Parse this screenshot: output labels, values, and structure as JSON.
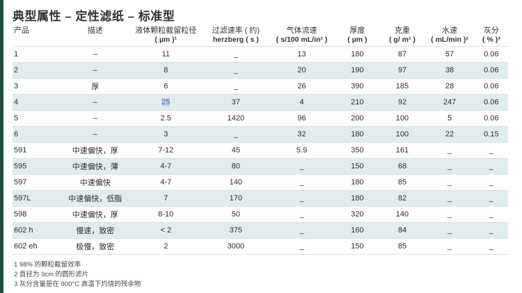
{
  "title": "典型属性 – 定性滤纸 – 标准型",
  "columns": [
    {
      "key": "product",
      "label": "产品",
      "unit": ""
    },
    {
      "key": "description",
      "label": "描述",
      "unit": ""
    },
    {
      "key": "particle_retention",
      "label": "液体颗粒截留粒径",
      "unit": "( µm )¹"
    },
    {
      "key": "filtration_speed",
      "label": "过滤速率 ( 约)",
      "unit": "herzberg ( s )"
    },
    {
      "key": "air_flow",
      "label": "气体流速",
      "unit": "( s/100 mL/in² )"
    },
    {
      "key": "thickness",
      "label": "厚度",
      "unit": "( µm )"
    },
    {
      "key": "weight",
      "label": "克重",
      "unit": "( g/ m² )"
    },
    {
      "key": "water_speed",
      "label": "水速",
      "unit": "( mL/min )²"
    },
    {
      "key": "ash",
      "label": "灰分",
      "unit": "( % )³"
    }
  ],
  "rows": [
    {
      "product": "1",
      "description": "–",
      "particle_retention": "11",
      "filtration_speed": "_",
      "air_flow": "13",
      "thickness": "180",
      "weight": "87",
      "water_speed": "57",
      "ash": "0.06"
    },
    {
      "product": "2",
      "description": "–",
      "particle_retention": "8",
      "filtration_speed": "_",
      "air_flow": "20",
      "thickness": "190",
      "weight": "97",
      "water_speed": "38",
      "ash": "0.06"
    },
    {
      "product": "3",
      "description": "厚",
      "particle_retention": "6",
      "filtration_speed": "_",
      "air_flow": "26",
      "thickness": "390",
      "weight": "185",
      "water_speed": "28",
      "ash": "0.06"
    },
    {
      "product": "4",
      "description": "–",
      "particle_retention": "25",
      "filtration_speed": "37",
      "air_flow": "4",
      "thickness": "210",
      "weight": "92",
      "water_speed": "247",
      "ash": "0.06"
    },
    {
      "product": "5",
      "description": "–",
      "particle_retention": "2.5",
      "filtration_speed": "1420",
      "air_flow": "96",
      "thickness": "200",
      "weight": "100",
      "water_speed": "5",
      "ash": "0.06"
    },
    {
      "product": "6",
      "description": "–",
      "particle_retention": "3",
      "filtration_speed": "_",
      "air_flow": "32",
      "thickness": "180",
      "weight": "100",
      "water_speed": "22",
      "ash": "0.15"
    },
    {
      "product": "591",
      "description": "中速偏快，厚",
      "particle_retention": "7-12",
      "filtration_speed": "45",
      "air_flow": "5.9",
      "thickness": "350",
      "weight": "161",
      "water_speed": "_",
      "ash": "_"
    },
    {
      "product": "595",
      "description": "中速偏快，薄",
      "particle_retention": "4-7",
      "filtration_speed": "80",
      "air_flow": "_",
      "thickness": "150",
      "weight": "68",
      "water_speed": "_",
      "ash": "_"
    },
    {
      "product": "597",
      "description": "中速偏快",
      "particle_retention": "4-7",
      "filtration_speed": "140",
      "air_flow": "_",
      "thickness": "180",
      "weight": "85",
      "water_speed": "_",
      "ash": "_"
    },
    {
      "product": "597L",
      "description": "中速偏快，低脂",
      "particle_retention": "7",
      "filtration_speed": "170",
      "air_flow": "_",
      "thickness": "180",
      "weight": "82",
      "water_speed": "_",
      "ash": "_"
    },
    {
      "product": "598",
      "description": "中速偏快，厚",
      "particle_retention": "8-10",
      "filtration_speed": "50",
      "air_flow": "_",
      "thickness": "320",
      "weight": "140",
      "water_speed": "_",
      "ash": "_"
    },
    {
      "product": "602 h",
      "description": "慢速，致密",
      "particle_retention": "< 2",
      "filtration_speed": "375",
      "air_flow": "_",
      "thickness": "160",
      "weight": "84",
      "water_speed": "_",
      "ash": "_"
    },
    {
      "product": "602 eh",
      "description": "极慢，致密",
      "particle_retention": "2",
      "filtration_speed": "3000",
      "air_flow": "_",
      "thickness": "150",
      "weight": "85",
      "water_speed": "_",
      "ash": "_"
    }
  ],
  "highlight": {
    "row": 3,
    "column": "particle_retention"
  },
  "footnotes": [
    "1 98% 的颗粒截留效率",
    "2 直径为 9cm 的圆形滤片",
    "3 灰分含量是在 900°C 高温下灼烧的残余物"
  ],
  "colors": {
    "accent_bar": "#1f4d3d",
    "stripe": "#dfeeed",
    "selection": "#c6d7f0"
  }
}
